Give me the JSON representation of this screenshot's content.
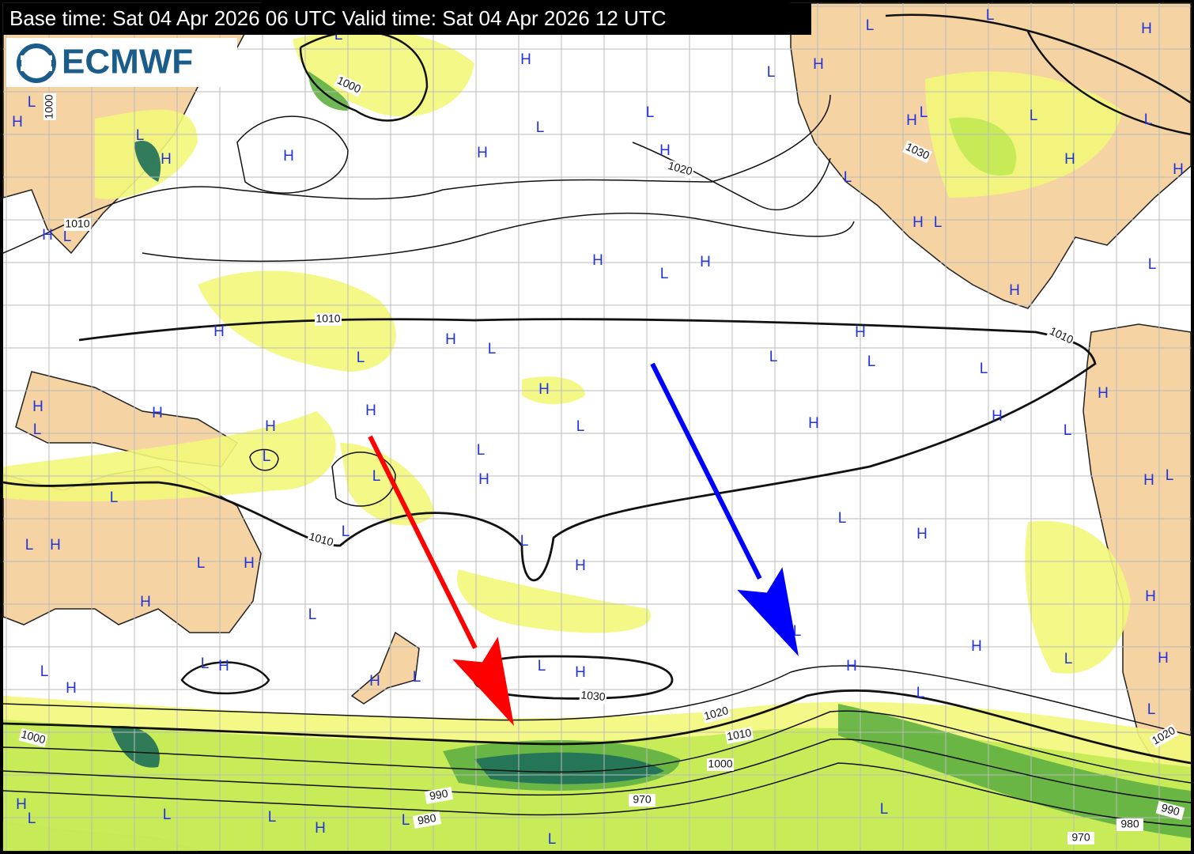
{
  "header": {
    "text": "Base time: Sat 04 Apr 2026 06 UTC Valid time: Sat 04 Apr 2026 12 UTC"
  },
  "logo": {
    "text": "ECMWF"
  },
  "pressure_centers": [
    "L",
    "H",
    "L",
    "H",
    "L",
    "H",
    "L",
    "L",
    "H",
    "L",
    "H",
    "H",
    "H",
    "L",
    "L",
    "H",
    "H",
    "L",
    "L",
    "H",
    "H",
    "L",
    "L",
    "H",
    "L",
    "H",
    "L",
    "H",
    "L",
    "H",
    "L",
    "H",
    "H",
    "H",
    "L",
    "L",
    "L",
    "H",
    "L",
    "L",
    "H",
    "H",
    "L",
    "H",
    "H",
    "L",
    "H",
    "H",
    "H",
    "L",
    "H",
    "L",
    "L",
    "H",
    "L",
    "L",
    "H",
    "L",
    "L",
    "H",
    "L",
    "H",
    "L",
    "L",
    "L",
    "H",
    "H",
    "H",
    "L",
    "H",
    "L",
    "H",
    "L",
    "H",
    "L",
    "H",
    "L",
    "H",
    "H",
    "L",
    "H",
    "L",
    "L",
    "H",
    "L",
    "H",
    "L",
    "L",
    "L",
    "H",
    "L",
    "L",
    "L"
  ],
  "isobar_labels": [
    "1000",
    "1000",
    "1010",
    "1020",
    "1030",
    "1010",
    "1010",
    "1010",
    "1030",
    "1020",
    "1010",
    "1000",
    "1000",
    "990",
    "980",
    "970",
    "990",
    "980",
    "970",
    "1020"
  ]
}
